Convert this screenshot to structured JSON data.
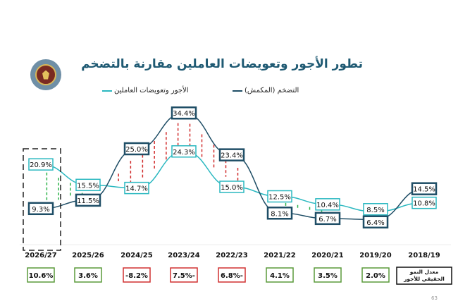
{
  "title": "تطور الأجور وتعويضات العاملين مقارنة بالتضخم",
  "page_number": "63",
  "colors": {
    "wages": "#2bb8c0",
    "inflation": "#1f4e66",
    "positive": "#5a9a3a",
    "negative": "#d03030",
    "title": "#1f5a73"
  },
  "chart_data": {
    "type": "line",
    "title": "تطور الأجور وتعويضات العاملين مقارنة بالتضخم",
    "categories": [
      "2026/27",
      "2025/26",
      "2024/25",
      "2023/24",
      "2022/23",
      "2021/22",
      "2020/21",
      "2019/20",
      "2018/19"
    ],
    "series": [
      {
        "name": "الأجور وتعويضات العاملين",
        "values": [
          20.9,
          15.5,
          14.7,
          24.3,
          15.0,
          12.5,
          10.4,
          8.5,
          10.8
        ],
        "labels": [
          "20.9%",
          "15.5%",
          "14.7%",
          "24.3%",
          "15.0%",
          "12.5%",
          "10.4%",
          "8.5%",
          "10.8%"
        ]
      },
      {
        "name": "التضخم (المكمش)",
        "values": [
          9.3,
          11.5,
          25.0,
          34.4,
          23.4,
          8.1,
          6.7,
          6.4,
          14.5
        ],
        "labels": [
          "9.3%",
          "11.5%",
          "25.0%",
          "34.4%",
          "23.4%",
          "8.1%",
          "6.7%",
          "6.4%",
          "14.5%"
        ]
      }
    ],
    "highlighted_category": "2026/27",
    "real_growth": {
      "label": "معدل النمو الحقيقي للأجور",
      "values": [
        10.6,
        3.6,
        -8.2,
        -7.5,
        -6.8,
        4.1,
        3.5,
        2.0
      ],
      "labels": [
        "10.6%",
        "3.6%",
        "-8.2%",
        "7.5%-",
        "6.8%-",
        "4.1%",
        "3.5%",
        "2.0%"
      ]
    },
    "legend_position": "top-center"
  }
}
